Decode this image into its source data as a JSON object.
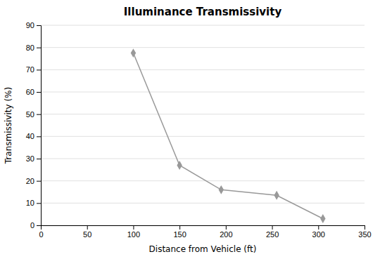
{
  "chart_data": {
    "type": "line",
    "title": "Illuminance Transmissivity",
    "xlabel": "Distance from Vehicle (ft)",
    "ylabel": "Transmissivity (%)",
    "x": [
      100,
      150,
      195,
      255,
      305
    ],
    "values": [
      77.5,
      27,
      16,
      13.5,
      3
    ],
    "color": "#999999",
    "marker": "diamond",
    "xlim": [
      0,
      350
    ],
    "ylim": [
      0,
      90
    ],
    "xticks": [
      0,
      50,
      100,
      150,
      200,
      250,
      300,
      350
    ],
    "yticks": [
      0,
      10,
      20,
      30,
      40,
      50,
      60,
      70,
      80,
      90
    ],
    "grid": "y"
  }
}
